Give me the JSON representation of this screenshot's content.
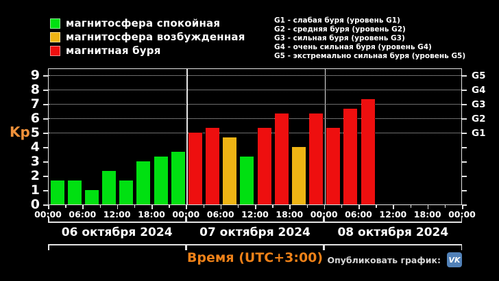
{
  "colors": {
    "green": "#00e011",
    "yellow": "#eeb414",
    "red": "#ee0f0f",
    "orange_text": "#ee8118",
    "vk_blue": "#5181b8",
    "axis": "#e4e4e4",
    "background": "#000000"
  },
  "legend": {
    "items": [
      {
        "label": "магнитосфера спокойная",
        "color_key": "green"
      },
      {
        "label": "магнитосфера возбужденная",
        "color_key": "yellow"
      },
      {
        "label": "магнитная буря",
        "color_key": "red"
      }
    ]
  },
  "storm_scale": [
    "G1 - слабая буря (уровень G1)",
    "G2 - средняя буря (уровень G2)",
    "G3 - сильная буря (уровень G3)",
    "G4 - очень сильная буря (уровень G4)",
    "G5 - экстремально сильная буря (уровень G5)"
  ],
  "chart_data": {
    "type": "bar",
    "ylabel": "Kp",
    "xlabel": "Время (UTC+3:00)",
    "ylim": [
      0,
      9
    ],
    "yticks": [
      0,
      1,
      2,
      3,
      4,
      5,
      6,
      7,
      8,
      9
    ],
    "grid_kp": [
      5,
      6,
      7,
      8,
      9
    ],
    "right_axis": [
      {
        "kp": 5,
        "label": "G1"
      },
      {
        "kp": 6,
        "label": "G2"
      },
      {
        "kp": 7,
        "label": "G3"
      },
      {
        "kp": 8,
        "label": "G4"
      },
      {
        "kp": 9,
        "label": "G5"
      }
    ],
    "hours_per_slot": 3,
    "hours_total": 72,
    "time_ticks": [
      "00:00",
      "06:00",
      "12:00",
      "18:00"
    ],
    "end_tick": "00:00",
    "days": [
      {
        "date": "06 октября 2024",
        "values": [
          1.67,
          1.67,
          1.0,
          2.33,
          1.67,
          3.0,
          3.33,
          3.67
        ],
        "colors": [
          "green",
          "green",
          "green",
          "green",
          "green",
          "green",
          "green",
          "green"
        ]
      },
      {
        "date": "07 октября 2024",
        "values": [
          5.0,
          5.33,
          4.67,
          3.33,
          5.33,
          6.33,
          4.0,
          6.33
        ],
        "colors": [
          "red",
          "red",
          "yellow",
          "green",
          "red",
          "red",
          "yellow",
          "red"
        ]
      },
      {
        "date": "08 октября 2024",
        "values": [
          5.33,
          6.67,
          7.33
        ],
        "colors": [
          "red",
          "red",
          "red"
        ]
      }
    ]
  },
  "footer": {
    "share_label": "Опубликовать график:",
    "vk_logo_text": "VK"
  }
}
